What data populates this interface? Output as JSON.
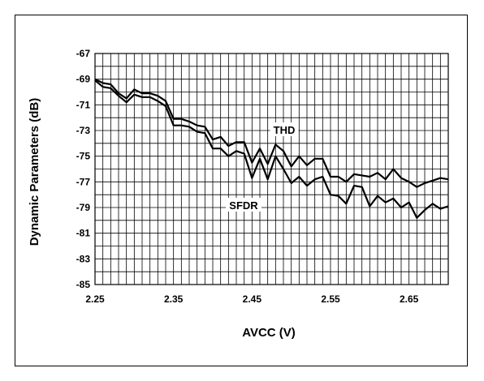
{
  "chart_data": {
    "type": "line",
    "xlabel": "AVCC (V)",
    "ylabel": "Dynamic Parameters (dB)",
    "xlim": [
      2.25,
      2.7
    ],
    "ylim": [
      -85,
      -67
    ],
    "x_ticks": [
      "2.25",
      "2.35",
      "2.45",
      "2.55",
      "2.65"
    ],
    "y_ticks": [
      "-67",
      "-69",
      "-71",
      "-73",
      "-75",
      "-77",
      "-79",
      "-81",
      "-83",
      "-85"
    ],
    "grid": true,
    "x": [
      2.25,
      2.26,
      2.27,
      2.28,
      2.29,
      2.3,
      2.31,
      2.32,
      2.33,
      2.34,
      2.35,
      2.36,
      2.37,
      2.38,
      2.39,
      2.4,
      2.41,
      2.42,
      2.43,
      2.44,
      2.45,
      2.46,
      2.47,
      2.48,
      2.49,
      2.5,
      2.51,
      2.52,
      2.53,
      2.54,
      2.55,
      2.56,
      2.57,
      2.58,
      2.59,
      2.6,
      2.61,
      2.62,
      2.63,
      2.64,
      2.65,
      2.66,
      2.67,
      2.68,
      2.69,
      2.7
    ],
    "series": [
      {
        "name": "THD",
        "values": [
          -69.0,
          -69.3,
          -69.4,
          -70.1,
          -70.5,
          -69.8,
          -70.1,
          -70.1,
          -70.3,
          -70.7,
          -72.1,
          -72.1,
          -72.3,
          -72.6,
          -72.7,
          -73.7,
          -73.5,
          -74.2,
          -73.9,
          -73.9,
          -75.5,
          -74.4,
          -75.6,
          -74.1,
          -74.6,
          -75.8,
          -75.0,
          -75.7,
          -75.2,
          -75.2,
          -76.6,
          -76.6,
          -77.0,
          -76.4,
          -76.5,
          -76.6,
          -76.3,
          -76.8,
          -76.0,
          -76.7,
          -77.0,
          -77.4,
          -77.1,
          -76.9,
          -76.7,
          -76.8
        ]
      },
      {
        "name": "SFDR",
        "values": [
          -69.1,
          -69.6,
          -69.7,
          -70.3,
          -70.8,
          -70.2,
          -70.4,
          -70.4,
          -70.7,
          -71.1,
          -72.6,
          -72.6,
          -72.7,
          -73.1,
          -73.2,
          -74.4,
          -74.4,
          -75.0,
          -74.6,
          -74.8,
          -76.7,
          -75.2,
          -76.8,
          -75.0,
          -76.0,
          -77.1,
          -76.6,
          -77.3,
          -76.8,
          -76.6,
          -78.0,
          -78.1,
          -78.7,
          -77.3,
          -77.4,
          -78.9,
          -78.1,
          -78.6,
          -78.3,
          -79.0,
          -78.6,
          -79.8,
          -79.2,
          -78.7,
          -79.1,
          -78.9
        ]
      }
    ]
  }
}
